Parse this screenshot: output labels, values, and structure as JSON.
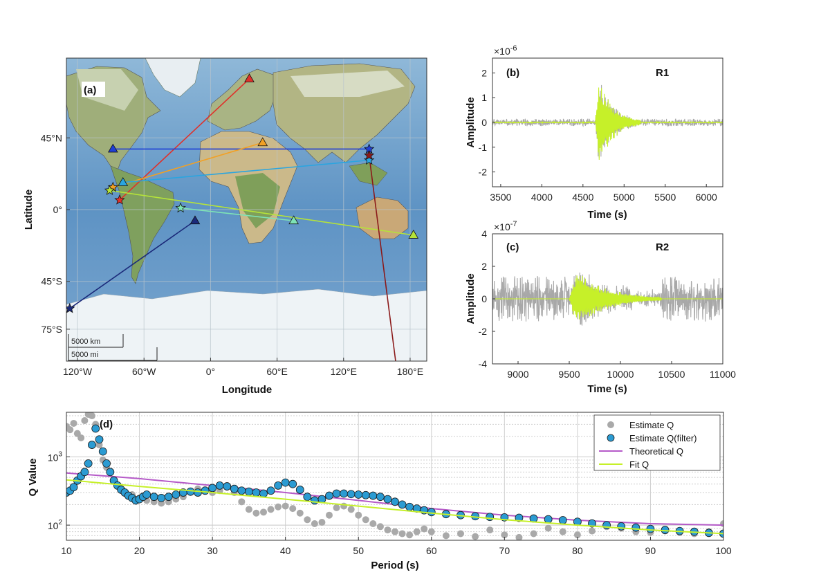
{
  "chart_data": [
    {
      "type": "scatter",
      "panel_label": "(a)",
      "subtype": "map",
      "xlabel": "Longitude",
      "ylabel": "Latitude",
      "xlim": [
        -130,
        195
      ],
      "ylim": [
        -95,
        95
      ],
      "xtick_values": [
        -120,
        -60,
        0,
        60,
        120,
        180
      ],
      "xtick_labels": [
        "120°W",
        "60°W",
        "0°",
        "60°E",
        "120°E",
        "180°E"
      ],
      "ytick_values": [
        45,
        0,
        -45,
        -75
      ],
      "ytick_labels": [
        "45°N",
        "0°",
        "45°S",
        "75°S"
      ],
      "scalebar_km": "5000 km",
      "scalebar_mi": "5000 mi",
      "paths": [
        {
          "color": "#e0302a",
          "event": [
            -82,
            6
          ],
          "station": [
            35,
            82
          ]
        },
        {
          "color": "#1f3fd6",
          "event": [
            143,
            38
          ],
          "station": [
            -88,
            38
          ]
        },
        {
          "color": "#f2a024",
          "event": [
            -88,
            14
          ],
          "station": [
            47,
            42
          ]
        },
        {
          "color": "#2aa5e0",
          "event": [
            143,
            31
          ],
          "station": [
            -79,
            17
          ]
        },
        {
          "color": "#b5e33a",
          "event": [
            -91,
            12
          ],
          "station": [
            183,
            -16
          ]
        },
        {
          "color": "#7ee3b5",
          "event": [
            -27,
            1
          ],
          "station": [
            75,
            -7
          ]
        },
        {
          "color": "#1b2a7a",
          "event": [
            -127,
            -62
          ],
          "station": [
            -14,
            -7
          ]
        },
        {
          "color": "#8b1a1a",
          "event": [
            143,
            34
          ],
          "station": [
            171,
            -117
          ]
        }
      ]
    },
    {
      "type": "line",
      "panel_label": "(b)",
      "title": "R1",
      "xlabel": "Time (s)",
      "ylabel": "Amplitude",
      "exponent": "×10",
      "exponent_power": "-6",
      "xlim": [
        3400,
        6200
      ],
      "ylim": [
        -2.6,
        2.6
      ],
      "xticks": [
        3500,
        4000,
        4500,
        5000,
        5500,
        6000
      ],
      "yticks": [
        2,
        1,
        0,
        -1,
        -2
      ],
      "series": [
        {
          "color": "#a8a8a8",
          "noise_amp": 0.15,
          "packet_start": 4650,
          "packet_end": 5200,
          "packet_peak": 2.3
        },
        {
          "color": "#c6f029",
          "noise_amp": 0.02,
          "packet_start": 4650,
          "packet_end": 5200,
          "packet_peak": 2.3
        }
      ]
    },
    {
      "type": "line",
      "panel_label": "(c)",
      "title": "R2",
      "xlabel": "Time (s)",
      "ylabel": "Amplitude",
      "exponent": "×10",
      "exponent_power": "-7",
      "xlim": [
        8750,
        11000
      ],
      "ylim": [
        -4,
        4
      ],
      "xticks": [
        9000,
        9500,
        10000,
        10500,
        11000
      ],
      "yticks": [
        4,
        2,
        0,
        -2,
        -4
      ],
      "series": [
        {
          "color": "#a8a8a8",
          "noise_amp": 1.4,
          "packet_start": 9500,
          "packet_end": 10400,
          "packet_peak": 2.3
        },
        {
          "color": "#c6f029",
          "noise_amp": 0.0,
          "packet_start": 9500,
          "packet_end": 10400,
          "packet_peak": 2.3
        }
      ]
    },
    {
      "type": "scatter",
      "panel_label": "(d)",
      "xlabel": "Period (s)",
      "ylabel": "Q Value",
      "xlim": [
        10,
        100
      ],
      "ylim": [
        60,
        4500
      ],
      "yscale": "log",
      "xticks": [
        10,
        20,
        30,
        40,
        50,
        60,
        70,
        80,
        90,
        100
      ],
      "ytick_labels": [
        "10^3",
        "10^2"
      ],
      "ytick_values": [
        1000,
        100
      ],
      "legend": [
        "Estimate Q",
        "Estimate Q(filter)",
        "Theoretical Q",
        "Fit Q"
      ],
      "legend_position": "top-right",
      "colors": {
        "estimate": "#a9a9a9",
        "filter": "#2b9bd2",
        "theoretical": "#b55ac8",
        "fit": "#c6f029"
      },
      "estimate_q": [
        [
          10,
          2800
        ],
        [
          10.5,
          2500
        ],
        [
          11,
          3100
        ],
        [
          11.5,
          2200
        ],
        [
          12,
          1900
        ],
        [
          12.5,
          3400
        ],
        [
          13,
          4200
        ],
        [
          13.5,
          4000
        ],
        [
          14,
          3000
        ],
        [
          14.5,
          1500
        ],
        [
          15,
          900
        ],
        [
          15.5,
          700
        ],
        [
          16,
          600
        ],
        [
          16.5,
          450
        ],
        [
          17,
          380
        ],
        [
          17.5,
          340
        ],
        [
          18,
          300
        ],
        [
          19,
          280
        ],
        [
          20,
          250
        ],
        [
          21,
          230
        ],
        [
          22,
          220
        ],
        [
          23,
          210
        ],
        [
          24,
          220
        ],
        [
          25,
          240
        ],
        [
          26,
          260
        ],
        [
          27,
          300
        ],
        [
          28,
          340
        ],
        [
          29,
          330
        ],
        [
          30,
          300
        ],
        [
          31,
          320
        ],
        [
          32,
          360
        ],
        [
          33,
          300
        ],
        [
          34,
          220
        ],
        [
          35,
          170
        ],
        [
          36,
          150
        ],
        [
          37,
          155
        ],
        [
          38,
          170
        ],
        [
          39,
          185
        ],
        [
          40,
          190
        ],
        [
          41,
          175
        ],
        [
          42,
          150
        ],
        [
          43,
          120
        ],
        [
          44,
          105
        ],
        [
          45,
          110
        ],
        [
          46,
          140
        ],
        [
          47,
          180
        ],
        [
          48,
          190
        ],
        [
          49,
          170
        ],
        [
          50,
          140
        ],
        [
          51,
          120
        ],
        [
          52,
          105
        ],
        [
          53,
          95
        ],
        [
          54,
          85
        ],
        [
          55,
          80
        ],
        [
          56,
          75
        ],
        [
          57,
          72
        ],
        [
          58,
          80
        ],
        [
          59,
          88
        ],
        [
          60,
          80
        ],
        [
          62,
          70
        ],
        [
          64,
          75
        ],
        [
          66,
          68
        ],
        [
          68,
          85
        ],
        [
          70,
          72
        ],
        [
          72,
          66
        ],
        [
          74,
          75
        ],
        [
          76,
          90
        ],
        [
          78,
          80
        ],
        [
          80,
          72
        ],
        [
          82,
          82
        ],
        [
          84,
          95
        ],
        [
          86,
          90
        ],
        [
          88,
          80
        ],
        [
          90,
          78
        ],
        [
          92,
          82
        ],
        [
          94,
          78
        ],
        [
          96,
          75
        ],
        [
          98,
          80
        ],
        [
          100,
          105
        ]
      ],
      "estimate_q_filter": [
        [
          10,
          300
        ],
        [
          10.5,
          320
        ],
        [
          11,
          360
        ],
        [
          11.5,
          450
        ],
        [
          12,
          520
        ],
        [
          12.5,
          600
        ],
        [
          13,
          800
        ],
        [
          13.5,
          1500
        ],
        [
          14,
          2600
        ],
        [
          14.5,
          1800
        ],
        [
          15,
          1200
        ],
        [
          15.5,
          800
        ],
        [
          16,
          600
        ],
        [
          16.5,
          450
        ],
        [
          17,
          380
        ],
        [
          17.5,
          330
        ],
        [
          18,
          300
        ],
        [
          18.5,
          270
        ],
        [
          19,
          250
        ],
        [
          19.5,
          230
        ],
        [
          20,
          240
        ],
        [
          20.5,
          260
        ],
        [
          21,
          280
        ],
        [
          22,
          260
        ],
        [
          23,
          250
        ],
        [
          24,
          260
        ],
        [
          25,
          280
        ],
        [
          26,
          300
        ],
        [
          27,
          310
        ],
        [
          28,
          300
        ],
        [
          29,
          320
        ],
        [
          30,
          350
        ],
        [
          31,
          380
        ],
        [
          32,
          370
        ],
        [
          33,
          340
        ],
        [
          34,
          320
        ],
        [
          35,
          310
        ],
        [
          36,
          300
        ],
        [
          37,
          290
        ],
        [
          38,
          320
        ],
        [
          39,
          380
        ],
        [
          40,
          420
        ],
        [
          41,
          400
        ],
        [
          42,
          330
        ],
        [
          43,
          260
        ],
        [
          44,
          230
        ],
        [
          45,
          240
        ],
        [
          46,
          270
        ],
        [
          47,
          290
        ],
        [
          48,
          290
        ],
        [
          49,
          285
        ],
        [
          50,
          280
        ],
        [
          51,
          275
        ],
        [
          52,
          270
        ],
        [
          53,
          260
        ],
        [
          54,
          240
        ],
        [
          55,
          220
        ],
        [
          56,
          200
        ],
        [
          57,
          185
        ],
        [
          58,
          175
        ],
        [
          59,
          165
        ],
        [
          60,
          155
        ],
        [
          62,
          145
        ],
        [
          64,
          140
        ],
        [
          66,
          135
        ],
        [
          68,
          132
        ],
        [
          70,
          130
        ],
        [
          72,
          128
        ],
        [
          74,
          125
        ],
        [
          76,
          122
        ],
        [
          78,
          118
        ],
        [
          80,
          112
        ],
        [
          82,
          106
        ],
        [
          84,
          100
        ],
        [
          86,
          96
        ],
        [
          88,
          92
        ],
        [
          90,
          88
        ],
        [
          92,
          85
        ],
        [
          94,
          82
        ],
        [
          96,
          80
        ],
        [
          98,
          77
        ],
        [
          100,
          75
        ]
      ],
      "theoretical_q": [
        [
          10,
          580
        ],
        [
          20,
          480
        ],
        [
          30,
          380
        ],
        [
          40,
          300
        ],
        [
          50,
          230
        ],
        [
          60,
          175
        ],
        [
          70,
          140
        ],
        [
          80,
          118
        ],
        [
          90,
          105
        ],
        [
          100,
          100
        ]
      ],
      "fit_q": [
        [
          10,
          460
        ],
        [
          20,
          370
        ],
        [
          30,
          300
        ],
        [
          40,
          240
        ],
        [
          50,
          190
        ],
        [
          60,
          150
        ],
        [
          70,
          120
        ],
        [
          80,
          100
        ],
        [
          90,
          85
        ],
        [
          100,
          75
        ]
      ]
    }
  ]
}
